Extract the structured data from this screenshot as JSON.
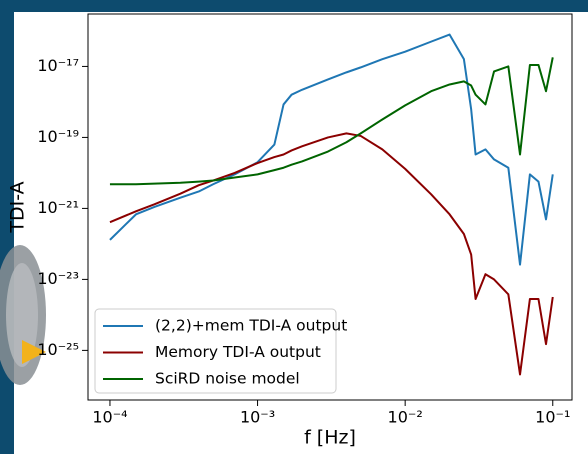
{
  "chart_data": {
    "type": "line",
    "xlabel": "f [Hz]",
    "ylabel": "TDI-A",
    "xscale": "log",
    "yscale": "log",
    "xlim": [
      7.1e-05,
      0.135
    ],
    "ylim": [
      4e-27,
      3e-16
    ],
    "xticks": [
      {
        "value": 0.0001,
        "label": "10⁻⁴"
      },
      {
        "value": 0.001,
        "label": "10⁻³"
      },
      {
        "value": 0.01,
        "label": "10⁻²"
      },
      {
        "value": 0.1,
        "label": "10⁻¹"
      }
    ],
    "yticks": [
      {
        "value": 1e-25,
        "label": "10⁻²⁵"
      },
      {
        "value": 1e-23,
        "label": "10⁻²³"
      },
      {
        "value": 1e-21,
        "label": "10⁻²¹"
      },
      {
        "value": 1e-19,
        "label": "10⁻¹⁹"
      },
      {
        "value": 1e-17,
        "label": "10⁻¹⁷"
      }
    ],
    "grid": false,
    "legend": "lower left",
    "x": [
      0.0001,
      0.00015,
      0.0002,
      0.0003,
      0.0004,
      0.0005,
      0.0007,
      0.001,
      0.0013,
      0.0015,
      0.0017,
      0.002,
      0.003,
      0.004,
      0.005,
      0.007,
      0.01,
      0.015,
      0.02,
      0.025,
      0.028,
      0.03,
      0.035,
      0.04,
      0.05,
      0.06,
      0.07,
      0.08,
      0.09,
      0.1
    ],
    "series": [
      {
        "name": "(2,2)+mem TDI-A output",
        "color": "#1f77b4",
        "values": [
          1.3e-22,
          6.8e-22,
          1.1e-21,
          2e-21,
          3e-21,
          4.8e-21,
          9.1e-21,
          2e-20,
          6.3e-20,
          8.5e-19,
          1.6e-18,
          2.2e-18,
          4.3e-18,
          6.8e-18,
          9.4e-18,
          1.6e-17,
          2.6e-17,
          5e-17,
          7.9e-17,
          1.6e-17,
          6.2e-19,
          3.3e-20,
          4.6e-20,
          2.4e-20,
          1.4e-20,
          2.6e-23,
          9.1e-21,
          5.7e-21,
          4.9e-22,
          9.1e-21
        ]
      },
      {
        "name": "Memory TDI-A output",
        "color": "#8b0000",
        "values": [
          4.1e-22,
          8.3e-22,
          1.3e-21,
          2.6e-21,
          4.5e-21,
          6.1e-21,
          1e-20,
          1.9e-20,
          2.8e-20,
          3.3e-20,
          4.3e-20,
          5.6e-20,
          1e-19,
          1.3e-19,
          1.1e-19,
          4.6e-20,
          1.3e-20,
          2.5e-21,
          6.8e-22,
          1.9e-22,
          5e-23,
          2.8e-24,
          1.4e-23,
          1e-23,
          3.8e-24,
          2.1e-26,
          2.8e-24,
          2.8e-24,
          1.5e-25,
          3.2e-24
        ]
      },
      {
        "name": "SciRD noise model",
        "color": "#006400",
        "values": [
          4.8e-21,
          4.8e-21,
          5e-21,
          5.3e-21,
          5.7e-21,
          6.1e-21,
          7.4e-21,
          9.1e-21,
          1.2e-20,
          1.4e-20,
          1.7e-20,
          2.1e-20,
          4e-20,
          7.3e-20,
          1.3e-19,
          3.2e-19,
          8e-19,
          2e-18,
          3.1e-18,
          3.8e-18,
          2.9e-18,
          1.6e-18,
          8.5e-19,
          7.2e-18,
          1e-17,
          3.3e-20,
          1.1e-17,
          1.1e-17,
          2e-18,
          1.8e-17
        ]
      }
    ]
  }
}
